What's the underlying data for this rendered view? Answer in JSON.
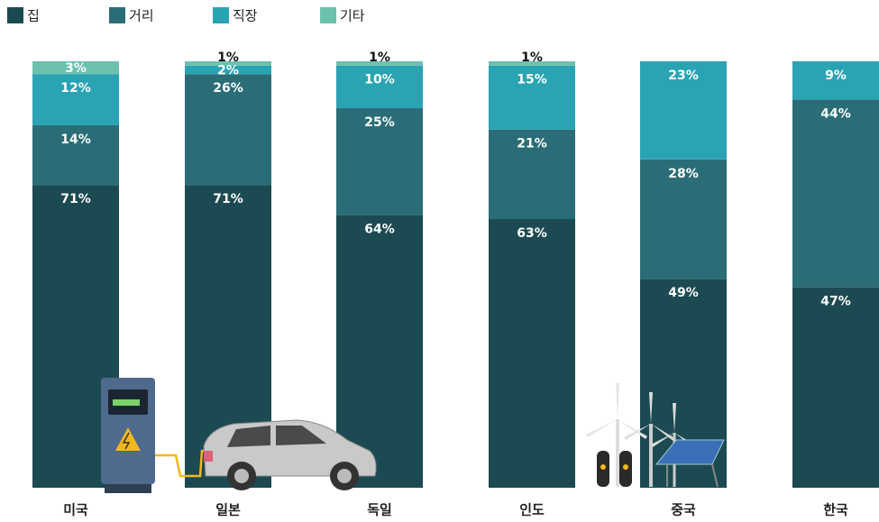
{
  "chart_data": {
    "type": "stacked-bar",
    "categories": [
      "미국",
      "일본",
      "독일",
      "인도",
      "중국",
      "한국"
    ],
    "ylim": [
      0,
      100
    ],
    "series": [
      {
        "name": "집",
        "color": "#1c4a52",
        "values": [
          71,
          71,
          64,
          63,
          49,
          47
        ],
        "value_labels": [
          "71%",
          "71%",
          "64%",
          "63%",
          "49%",
          "47%"
        ]
      },
      {
        "name": "거리",
        "color": "#2b6d77",
        "values": [
          14,
          26,
          25,
          21,
          28,
          44
        ],
        "value_labels": [
          "14%",
          "26%",
          "25%",
          "21%",
          "28%",
          "44%"
        ]
      },
      {
        "name": "직장",
        "color": "#2aa3b3",
        "values": [
          12,
          2,
          10,
          15,
          23,
          9
        ],
        "value_labels": [
          "12%",
          "2%",
          "10%",
          "15%",
          "23%",
          "9%"
        ]
      },
      {
        "name": "기타",
        "color": "#6cc1ae",
        "values": [
          3,
          1,
          1,
          1,
          null,
          null
        ],
        "value_labels": [
          "3%",
          "1%",
          "1%",
          "1%",
          null,
          null
        ]
      }
    ]
  }
}
